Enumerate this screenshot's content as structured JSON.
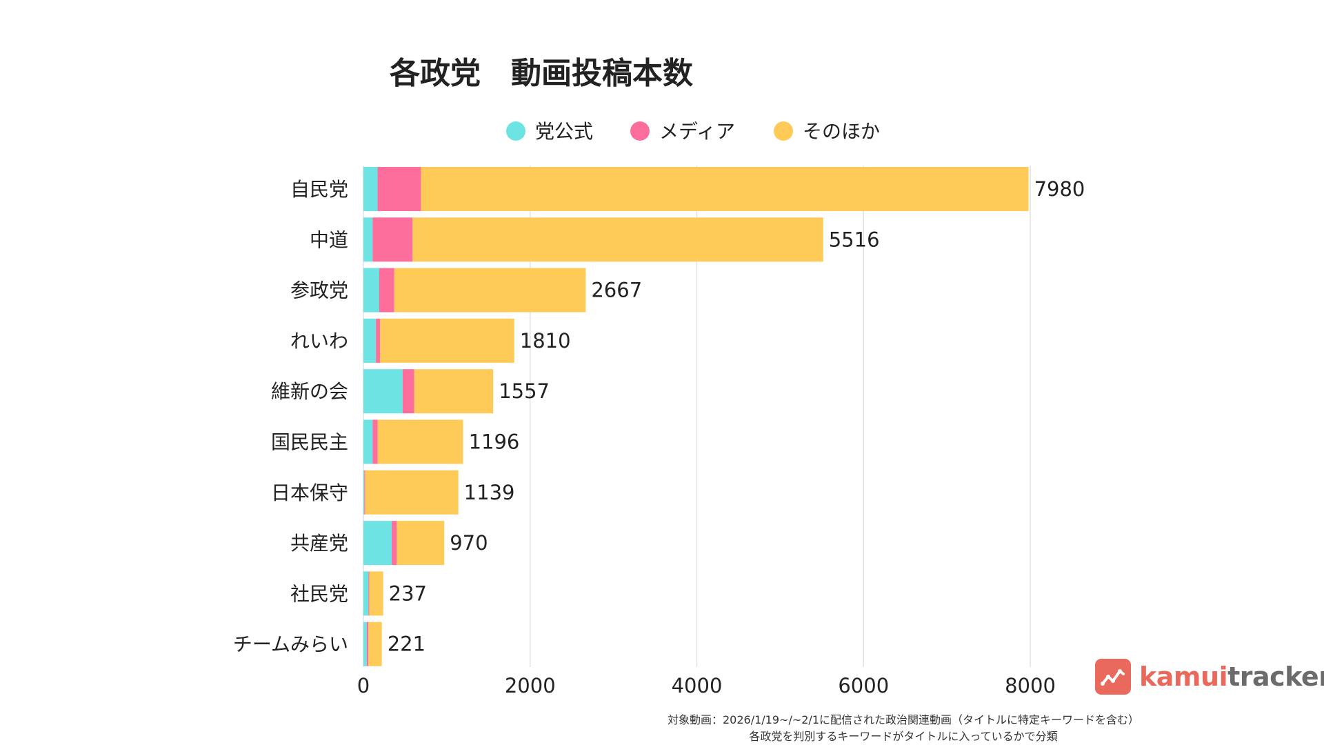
{
  "chart_data": {
    "type": "bar",
    "orientation": "horizontal",
    "stacked": true,
    "title": "各政党　動画投稿本数",
    "categories": [
      "自民党",
      "中道",
      "参政党",
      "れいわ",
      "維新の会",
      "国民民主",
      "日本保守",
      "共産党",
      "社民党",
      "チームみらい"
    ],
    "series": [
      {
        "name": "党公式",
        "color": "#6ee3e3",
        "values": [
          170,
          110,
          190,
          150,
          470,
          110,
          10,
          340,
          60,
          40
        ]
      },
      {
        "name": "メディア",
        "color": "#fd6e9c",
        "values": [
          520,
          480,
          180,
          50,
          140,
          60,
          10,
          60,
          10,
          20
        ]
      },
      {
        "name": "そのほか",
        "color": "#fecb58",
        "values": [
          7290,
          4926,
          2297,
          1610,
          947,
          1026,
          1119,
          570,
          167,
          161
        ]
      }
    ],
    "totals": [
      7980,
      5516,
      2667,
      1810,
      1557,
      1196,
      1139,
      970,
      237,
      221
    ],
    "xlim": [
      0,
      8000
    ],
    "xticks": [
      0,
      2000,
      4000,
      6000,
      8000
    ],
    "xlabel": "",
    "ylabel": "",
    "grid": true,
    "legend_position": "top-center"
  },
  "brand": {
    "name_part1": "kamui",
    "name_part2": "tracker"
  },
  "footnote": {
    "line1": "対象動画：2026/1/19~/~2/1に配信された政治関連動画（タイトルに特定キーワードを含む）",
    "line2": "各政党を判別するキーワードがタイトルに入っているかで分類"
  }
}
